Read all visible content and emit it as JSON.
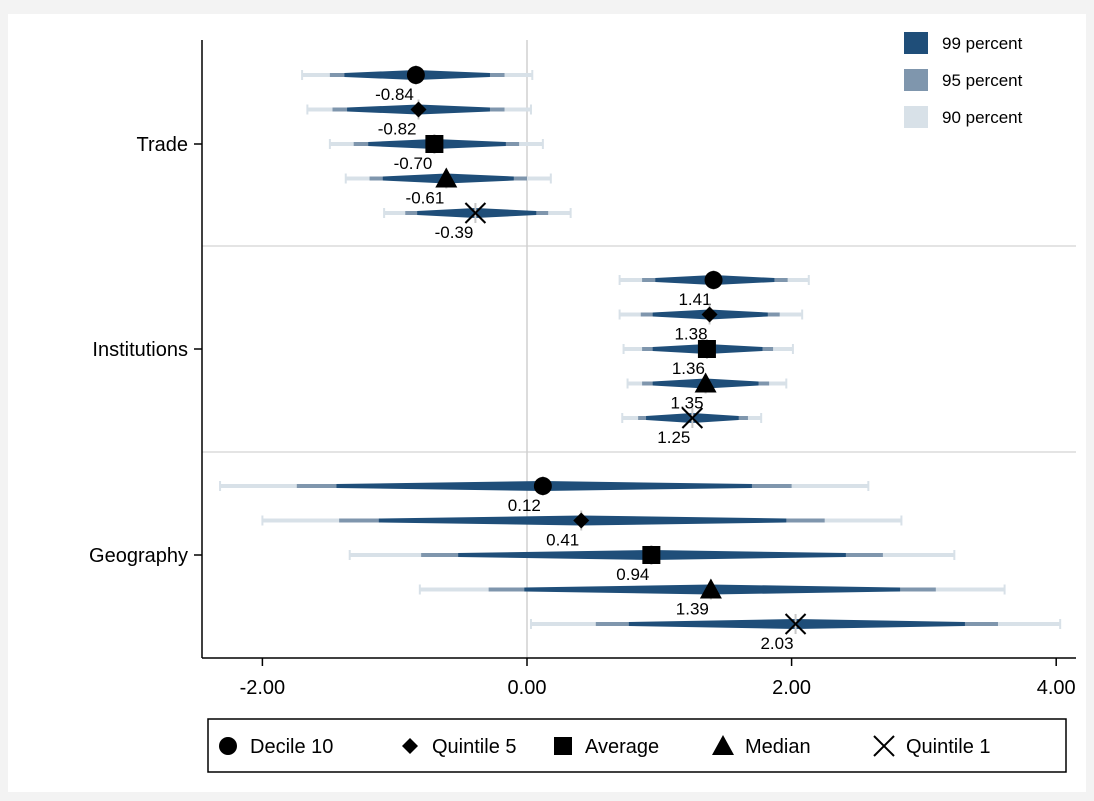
{
  "chart_data": {
    "type": "forest",
    "x_axis": {
      "ticks": [
        -2,
        0,
        2,
        4
      ],
      "tick_labels": [
        "-2.00",
        "0.00",
        "2.00",
        "4.00"
      ],
      "range": [
        -2.45,
        4.15
      ]
    },
    "categories": [
      "Trade",
      "Institutions",
      "Geography"
    ],
    "series": [
      {
        "name": "Decile 10",
        "marker": "circle"
      },
      {
        "name": "Quintile 5",
        "marker": "diamond"
      },
      {
        "name": "Average",
        "marker": "square"
      },
      {
        "name": "Median",
        "marker": "triangle"
      },
      {
        "name": "Quintile 1",
        "marker": "x"
      }
    ],
    "ci_legend": [
      {
        "label": "99 percent",
        "color": "#1f4e79"
      },
      {
        "label": "95 percent",
        "color": "#7f96ad"
      },
      {
        "label": "90 percent",
        "color": "#d8e1e8"
      }
    ],
    "points": [
      {
        "category": "Trade",
        "series": "Decile 10",
        "estimate": -0.84,
        "label": "-0.84",
        "ci99": [
          -1.38,
          -0.28
        ],
        "ci95": [
          -1.49,
          -0.17
        ],
        "ci90": [
          -1.7,
          0.04
        ]
      },
      {
        "category": "Trade",
        "series": "Quintile 5",
        "estimate": -0.82,
        "label": "-0.82",
        "ci99": [
          -1.36,
          -0.28
        ],
        "ci95": [
          -1.47,
          -0.17
        ],
        "ci90": [
          -1.66,
          0.03
        ]
      },
      {
        "category": "Trade",
        "series": "Average",
        "estimate": -0.7,
        "label": "-0.70",
        "ci99": [
          -1.2,
          -0.16
        ],
        "ci95": [
          -1.31,
          -0.06
        ],
        "ci90": [
          -1.49,
          0.12
        ]
      },
      {
        "category": "Trade",
        "series": "Median",
        "estimate": -0.61,
        "label": "-0.61",
        "ci99": [
          -1.09,
          -0.1
        ],
        "ci95": [
          -1.19,
          0.0
        ],
        "ci90": [
          -1.37,
          0.18
        ]
      },
      {
        "category": "Trade",
        "series": "Quintile 1",
        "estimate": -0.39,
        "label": "-0.39",
        "ci99": [
          -0.83,
          0.07
        ],
        "ci95": [
          -0.92,
          0.16
        ],
        "ci90": [
          -1.08,
          0.33
        ]
      },
      {
        "category": "Institutions",
        "series": "Decile 10",
        "estimate": 1.41,
        "label": "1.41",
        "ci99": [
          0.97,
          1.87
        ],
        "ci95": [
          0.87,
          1.97
        ],
        "ci90": [
          0.7,
          2.13
        ]
      },
      {
        "category": "Institutions",
        "series": "Quintile 5",
        "estimate": 1.38,
        "label": "1.38",
        "ci99": [
          0.95,
          1.82
        ],
        "ci95": [
          0.86,
          1.91
        ],
        "ci90": [
          0.7,
          2.08
        ]
      },
      {
        "category": "Institutions",
        "series": "Average",
        "estimate": 1.36,
        "label": "1.36",
        "ci99": [
          0.95,
          1.78
        ],
        "ci95": [
          0.87,
          1.86
        ],
        "ci90": [
          0.73,
          2.01
        ]
      },
      {
        "category": "Institutions",
        "series": "Median",
        "estimate": 1.35,
        "label": "1.35",
        "ci99": [
          0.95,
          1.75
        ],
        "ci95": [
          0.87,
          1.83
        ],
        "ci90": [
          0.76,
          1.96
        ]
      },
      {
        "category": "Institutions",
        "series": "Quintile 1",
        "estimate": 1.25,
        "label": "1.25",
        "ci99": [
          0.9,
          1.6
        ],
        "ci95": [
          0.84,
          1.67
        ],
        "ci90": [
          0.72,
          1.77
        ]
      },
      {
        "category": "Geography",
        "series": "Decile 10",
        "estimate": 0.12,
        "label": "0.12",
        "ci99": [
          -1.44,
          1.7
        ],
        "ci95": [
          -1.74,
          2.0
        ],
        "ci90": [
          -2.32,
          2.58
        ]
      },
      {
        "category": "Geography",
        "series": "Quintile 5",
        "estimate": 0.41,
        "label": "0.41",
        "ci99": [
          -1.12,
          1.96
        ],
        "ci95": [
          -1.42,
          2.25
        ],
        "ci90": [
          -2.0,
          2.83
        ]
      },
      {
        "category": "Geography",
        "series": "Average",
        "estimate": 0.94,
        "label": "0.94",
        "ci99": [
          -0.52,
          2.41
        ],
        "ci95": [
          -0.8,
          2.69
        ],
        "ci90": [
          -1.34,
          3.23
        ]
      },
      {
        "category": "Geography",
        "series": "Median",
        "estimate": 1.39,
        "label": "1.39",
        "ci99": [
          -0.02,
          2.82
        ],
        "ci95": [
          -0.29,
          3.09
        ],
        "ci90": [
          -0.81,
          3.61
        ]
      },
      {
        "category": "Geography",
        "series": "Quintile 1",
        "estimate": 2.03,
        "label": "2.03",
        "ci99": [
          0.77,
          3.31
        ],
        "ci95": [
          0.52,
          3.56
        ],
        "ci90": [
          0.03,
          4.03
        ]
      }
    ],
    "reference_line": 0,
    "grid": "horizontal separators between categories"
  }
}
